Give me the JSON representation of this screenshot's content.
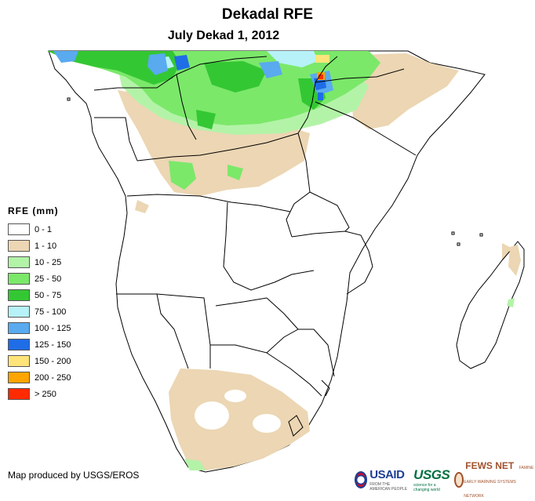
{
  "title": "Dekadal RFE",
  "subtitle": "July Dekad 1, 2012",
  "legend": {
    "title": "RFE (mm)",
    "items": [
      {
        "label": "0 - 1",
        "color": "#ffffff"
      },
      {
        "label": "1 - 10",
        "color": "#ecd6b3"
      },
      {
        "label": "10 - 25",
        "color": "#b3f3a8"
      },
      {
        "label": "25 - 50",
        "color": "#7be86a"
      },
      {
        "label": "50 - 75",
        "color": "#34c734"
      },
      {
        "label": "75 - 100",
        "color": "#b6f2f7"
      },
      {
        "label": "100 - 125",
        "color": "#59aaef"
      },
      {
        "label": "125 - 150",
        "color": "#1f6de7"
      },
      {
        "label": "150 - 200",
        "color": "#ffe47a"
      },
      {
        "label": "200 - 250",
        "color": "#ffa500"
      },
      {
        "label": "> 250",
        "color": "#ff2a00"
      }
    ]
  },
  "credit": "Map produced by USGS/EROS",
  "logos": {
    "usaid": "USAID",
    "usaid_tagline": "FROM THE AMERICAN PEOPLE",
    "usgs": "USGS",
    "usgs_tagline": "science for a changing world",
    "fews": "FEWS NET",
    "fews_tagline": "FAMINE EARLY WARNING SYSTEMS NETWORK"
  }
}
